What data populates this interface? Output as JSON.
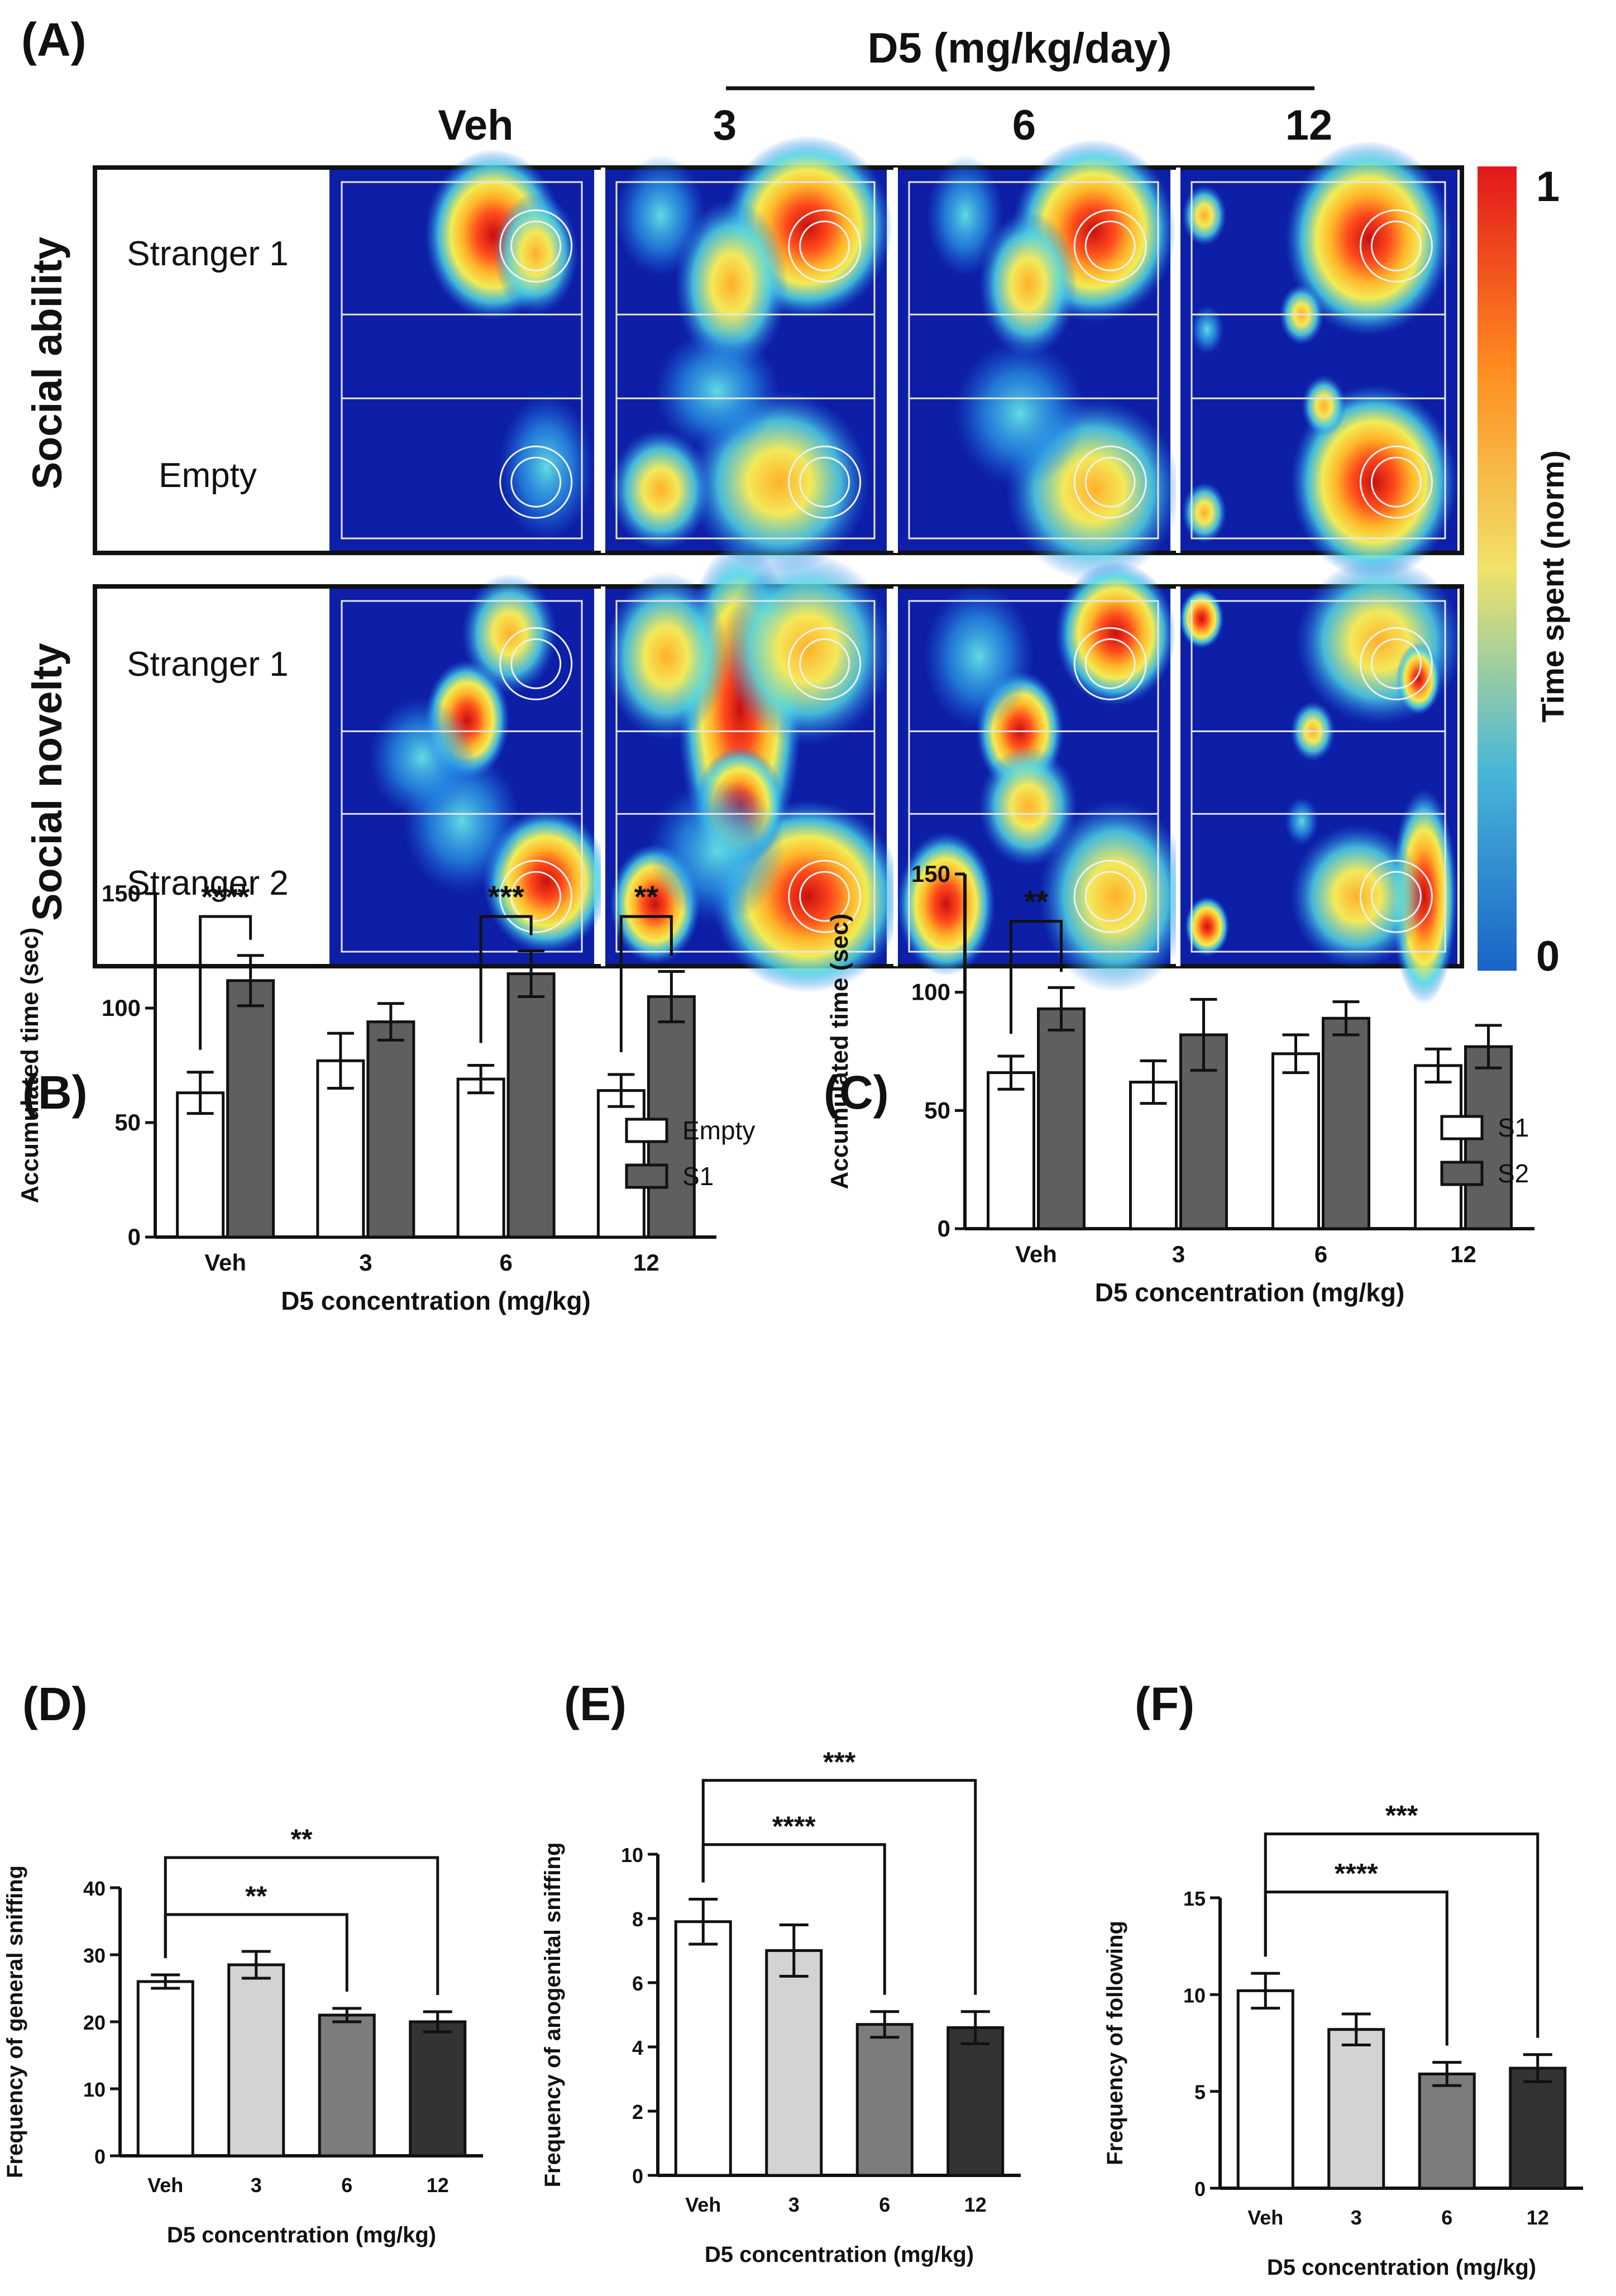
{
  "heatmap_figure": {
    "panel_label": "(A)",
    "dose_header": "D5 (mg/kg/day)",
    "columns": [
      "Veh",
      "3",
      "6",
      "12"
    ],
    "rows": [
      {
        "name": "Social ability",
        "top_label": "Stranger 1",
        "bottom_label": "Empty"
      },
      {
        "name": "Social novelty",
        "top_label": "Stranger 1",
        "bottom_label": "Stranger 2"
      }
    ],
    "colorbar": {
      "label": "Time spent (norm)",
      "max_label": "1",
      "min_label": "0",
      "colors": [
        "#0a0a9c",
        "#1565e8",
        "#38c7e8",
        "#f4e24b",
        "#ff8a1c",
        "#e01717"
      ]
    }
  },
  "chart_data": [
    {
      "id": "B",
      "panel_label": "(B)",
      "type": "bar",
      "categories": [
        "Veh",
        "3",
        "6",
        "12"
      ],
      "xlabel": "D5 concentration (mg/kg)",
      "ylabel": "Accumulated time (sec)",
      "ylim": [
        0,
        150
      ],
      "yticks": [
        "0",
        "50",
        "100",
        "150"
      ],
      "series": [
        {
          "name": "Empty",
          "color": "#ffffff",
          "values": [
            63,
            77,
            69,
            64
          ],
          "errors": [
            9,
            12,
            6,
            7
          ]
        },
        {
          "name": "S1",
          "color": "#5f5f5f",
          "values": [
            112,
            94,
            115,
            105
          ],
          "errors": [
            11,
            8,
            10,
            11
          ]
        }
      ],
      "legend": [
        "Empty",
        "S1"
      ],
      "significance": [
        {
          "label": "****",
          "category": 0,
          "from_series": 0,
          "to_series": 1,
          "level": 140
        },
        {
          "label": "***",
          "category": 2,
          "from_series": 0,
          "to_series": 1,
          "level": 140
        },
        {
          "label": "**",
          "category": 3,
          "from_series": 0,
          "to_series": 1,
          "level": 140
        }
      ]
    },
    {
      "id": "C",
      "panel_label": "(C)",
      "type": "bar",
      "categories": [
        "Veh",
        "3",
        "6",
        "12"
      ],
      "xlabel": "D5 concentration (mg/kg)",
      "ylabel": "Accumulated time (sec)",
      "ylim": [
        0,
        150
      ],
      "yticks": [
        "0",
        "50",
        "100",
        "150"
      ],
      "series": [
        {
          "name": "S1",
          "color": "#ffffff",
          "values": [
            66,
            62,
            74,
            69
          ],
          "errors": [
            7,
            9,
            8,
            7
          ]
        },
        {
          "name": "S2",
          "color": "#5f5f5f",
          "values": [
            93,
            82,
            89,
            77
          ],
          "errors": [
            9,
            15,
            7,
            9
          ]
        }
      ],
      "legend": [
        "S1",
        "S2"
      ],
      "significance": [
        {
          "label": "**",
          "category": 0,
          "from_series": 0,
          "to_series": 1,
          "level": 130
        }
      ]
    },
    {
      "id": "D",
      "panel_label": "(D)",
      "type": "bar",
      "categories": [
        "Veh",
        "3",
        "6",
        "12"
      ],
      "xlabel": "D5 concentration (mg/kg)",
      "ylabel": "Frequency of general sniffing",
      "ylim": [
        0,
        40
      ],
      "yticks": [
        "0",
        "10",
        "20",
        "30",
        "40"
      ],
      "values": [
        26,
        28.5,
        21,
        20
      ],
      "errors": [
        1,
        2,
        1,
        1.5
      ],
      "colors": [
        "#ffffff",
        "#d3d3d3",
        "#7c7c7c",
        "#333333"
      ],
      "significance": [
        {
          "label": "**",
          "from": 0,
          "to": 2,
          "level": 36
        },
        {
          "label": "**",
          "from": 0,
          "to": 3,
          "level": 44.5
        }
      ]
    },
    {
      "id": "E",
      "panel_label": "(E)",
      "type": "bar",
      "categories": [
        "Veh",
        "3",
        "6",
        "12"
      ],
      "xlabel": "D5 concentration (mg/kg)",
      "ylabel": "Frequency of anogenital sniffing",
      "ylim": [
        0,
        10
      ],
      "yticks": [
        "0",
        "2",
        "4",
        "6",
        "8",
        "10"
      ],
      "values": [
        7.9,
        7.0,
        4.7,
        4.6
      ],
      "errors": [
        0.7,
        0.8,
        0.4,
        0.5
      ],
      "colors": [
        "#ffffff",
        "#d3d3d3",
        "#7c7c7c",
        "#333333"
      ],
      "significance": [
        {
          "label": "****",
          "from": 0,
          "to": 2,
          "level": 10.3
        },
        {
          "label": "***",
          "from": 0,
          "to": 3,
          "level": 12.3
        }
      ]
    },
    {
      "id": "F",
      "panel_label": "(F)",
      "type": "bar",
      "categories": [
        "Veh",
        "3",
        "6",
        "12"
      ],
      "xlabel": "D5 concentration (mg/kg)",
      "ylabel": "Frequency of following",
      "ylim": [
        0,
        15
      ],
      "yticks": [
        "0",
        "5",
        "10",
        "15"
      ],
      "values": [
        10.2,
        8.2,
        5.9,
        6.2
      ],
      "errors": [
        0.9,
        0.8,
        0.6,
        0.7
      ],
      "colors": [
        "#ffffff",
        "#d3d3d3",
        "#7c7c7c",
        "#333333"
      ],
      "significance": [
        {
          "label": "****",
          "from": 0,
          "to": 2,
          "level": 15.3
        },
        {
          "label": "***",
          "from": 0,
          "to": 3,
          "level": 18.3
        }
      ]
    }
  ]
}
